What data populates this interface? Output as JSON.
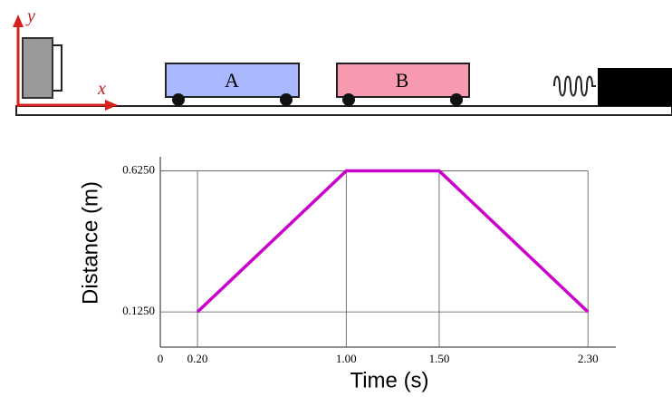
{
  "diagram": {
    "y_axis_label": "y",
    "x_axis_label": "x",
    "cart_a": "A",
    "cart_b": "B"
  },
  "chart_data": {
    "type": "line",
    "x_label": "Time (s)",
    "y_label": "Distance (m)",
    "x": [
      0.2,
      1.0,
      1.5,
      2.3
    ],
    "series": [
      {
        "name": null,
        "color": "#cc00cc",
        "values": [
          0.125,
          0.625,
          0.625,
          0.125
        ]
      }
    ],
    "xlim": [
      0,
      2.45
    ],
    "ylim": [
      0,
      0.675
    ],
    "xticks": [
      0,
      {
        "value": 0.2,
        "label": "0.20"
      },
      {
        "value": 1.0,
        "label": "1.00"
      },
      {
        "value": 1.5,
        "label": "1.50"
      },
      {
        "value": 2.3,
        "label": "2.30"
      }
    ],
    "yticks": [
      {
        "value": 0.125,
        "label": "0.1250"
      },
      {
        "value": 0.625,
        "label": "0.6250"
      }
    ],
    "grid": true
  }
}
